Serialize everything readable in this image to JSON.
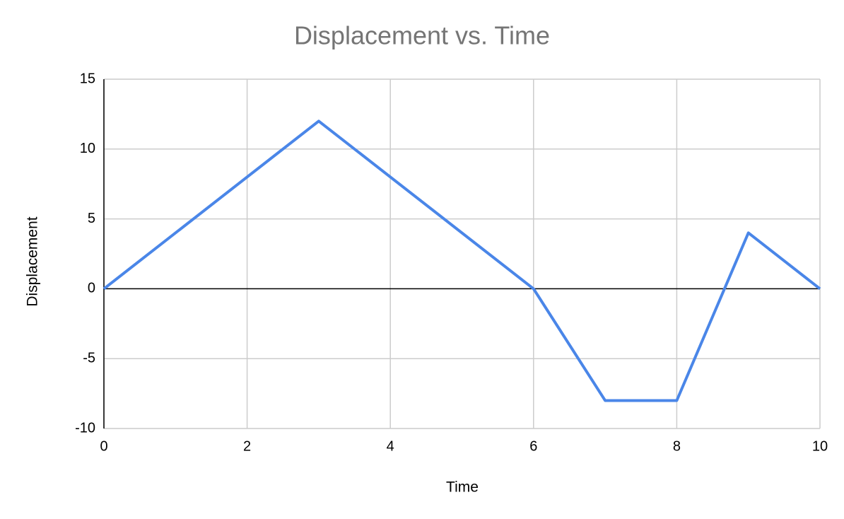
{
  "chart_data": {
    "type": "line",
    "title": "Displacement vs. Time",
    "x_label": "Time",
    "y_label": "Displacement",
    "x": [
      0,
      3,
      6,
      7,
      8,
      9,
      10
    ],
    "values": [
      0,
      12,
      0,
      -8,
      -8,
      4,
      0
    ],
    "color": "#4a86e8",
    "xlim": [
      0,
      10
    ],
    "xticks": [
      0,
      2,
      4,
      6,
      8,
      10
    ],
    "ylim": [
      -10,
      15
    ],
    "yticks": [
      -10,
      -5,
      0,
      5,
      10,
      15
    ],
    "grid": true
  }
}
